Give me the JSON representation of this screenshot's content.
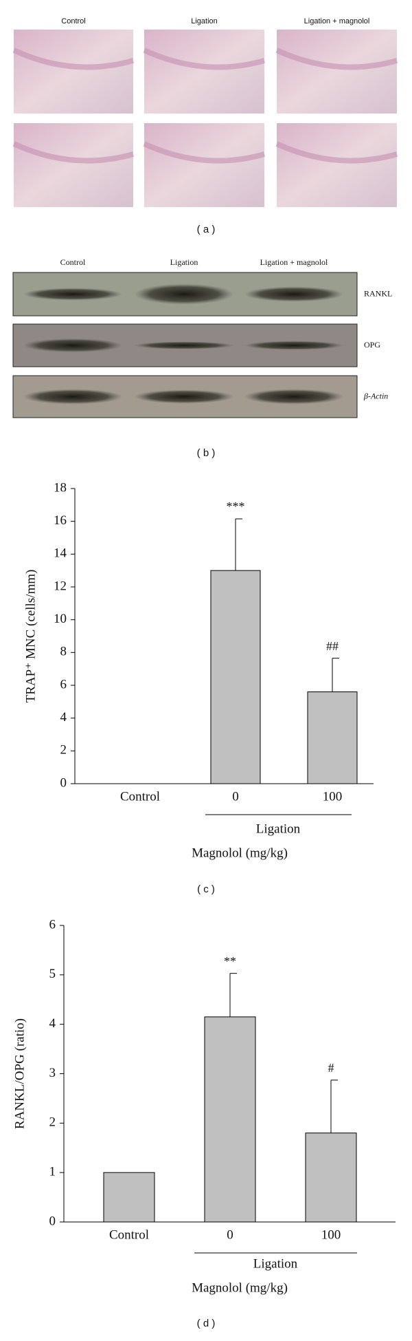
{
  "panel_a": {
    "columns": [
      "Control",
      "Ligation",
      "Ligation + magnolol"
    ],
    "label": "( a )"
  },
  "panel_b": {
    "columns": [
      "Control",
      "Ligation",
      "Ligation + magnolol"
    ],
    "rows": [
      "RANKL",
      "OPG",
      "β-Actin"
    ],
    "label": "( b )"
  },
  "chart_data": [
    {
      "type": "bar",
      "categories": [
        "Control",
        "0",
        "100"
      ],
      "values": [
        0,
        13,
        5.6
      ],
      "errors": [
        null,
        3.15,
        2.05
      ],
      "annotations": [
        null,
        "***",
        "##"
      ],
      "color": "#c0c0c0",
      "ylabel": "TRAP⁺ MNC (cells/mm)",
      "group_label": "Ligation",
      "xlabel": "Magnolol (mg/kg)",
      "ylim": [
        0,
        18
      ],
      "yticks": [
        0,
        2,
        4,
        6,
        8,
        10,
        12,
        14,
        16,
        18
      ],
      "label": "( c )"
    },
    {
      "type": "bar",
      "categories": [
        "Control",
        "0",
        "100"
      ],
      "values": [
        1,
        4.15,
        1.8
      ],
      "errors": [
        null,
        0.88,
        1.07
      ],
      "annotations": [
        null,
        "**",
        "#"
      ],
      "color": "#c0c0c0",
      "ylabel": "RANKL/OPG (ratio)",
      "group_label": "Ligation",
      "xlabel": "Magnolol (mg/kg)",
      "ylim": [
        0,
        6
      ],
      "yticks": [
        0,
        1,
        2,
        3,
        4,
        5,
        6
      ],
      "label": "( d )"
    }
  ]
}
